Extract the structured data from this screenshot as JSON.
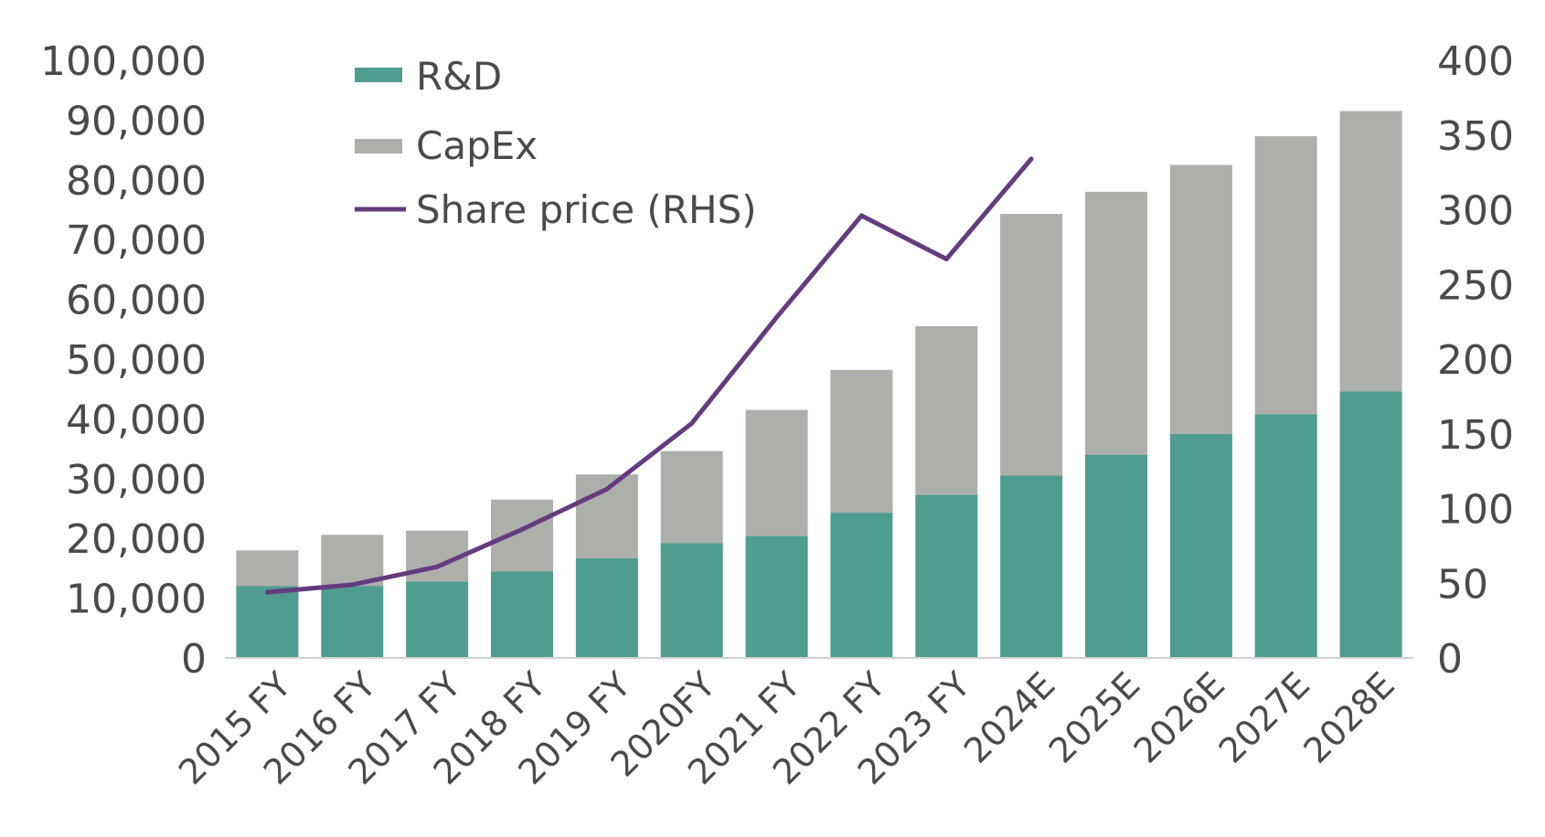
{
  "chart_data": {
    "type": "bar",
    "stacked": true,
    "categories": [
      "2015 FY",
      "2016 FY",
      "2017 FY",
      "2018 FY",
      "2019 FY",
      "2020FY",
      "2021 FY",
      "2022 FY",
      "2023 FY",
      "2024E",
      "2025E",
      "2026E",
      "2027E",
      "2028E"
    ],
    "series": [
      {
        "name": "R&D",
        "kind": "bar",
        "axis": "left",
        "color": "#4f9c91",
        "values": [
          12000,
          12000,
          12800,
          14500,
          16700,
          19200,
          20400,
          24300,
          27300,
          30500,
          34000,
          37500,
          40800,
          44600
        ]
      },
      {
        "name": "CapEx",
        "kind": "bar",
        "axis": "left",
        "color": "#adafab",
        "values": [
          6000,
          8600,
          8500,
          12000,
          14000,
          15400,
          21100,
          23900,
          28200,
          43800,
          44000,
          45000,
          46500,
          46900
        ]
      },
      {
        "name": "Share price (RHS)",
        "kind": "line",
        "axis": "right",
        "color": "#643c7f",
        "values": [
          44,
          49,
          61,
          86,
          113,
          157,
          228,
          296,
          267,
          334,
          null,
          null,
          null,
          null
        ]
      }
    ],
    "y_left": {
      "min": 0,
      "max": 100000,
      "ticks": [
        "0",
        "10,000",
        "20,000",
        "30,000",
        "40,000",
        "50,000",
        "60,000",
        "70,000",
        "80,000",
        "90,000",
        "100,000"
      ]
    },
    "y_right": {
      "min": 0,
      "max": 400,
      "ticks": [
        "0",
        "50",
        "100",
        "150",
        "200",
        "250",
        "300",
        "350",
        "400"
      ]
    },
    "legend_position": "top-left",
    "grid": false,
    "title": "",
    "xlabel": "",
    "ylabel": ""
  }
}
